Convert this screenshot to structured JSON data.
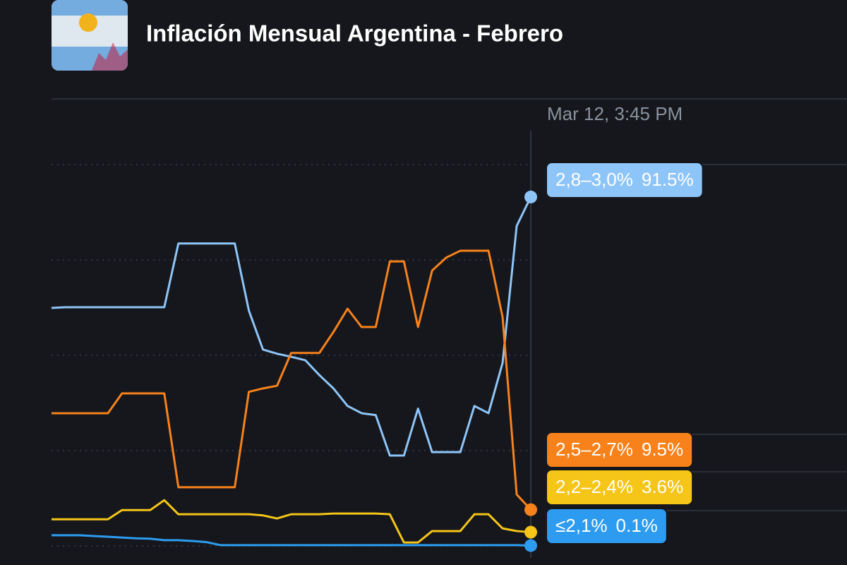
{
  "title": "Inflación Mensual Argentina - Febrero",
  "chart_data": {
    "type": "line",
    "annotation": "Mar 12, 3:45 PM",
    "ylim": [
      0,
      100
    ],
    "yticks": [
      0,
      25,
      50,
      75,
      100
    ],
    "grid": true,
    "series": [
      {
        "name": "2,8–3,0%",
        "color": "#8ec5f8",
        "values": [
          62.4,
          62.6,
          62.6,
          62.6,
          62.6,
          62.6,
          62.6,
          62.6,
          62.6,
          79.3,
          79.3,
          79.3,
          79.3,
          79.3,
          61.7,
          51.5,
          50.4,
          49.6,
          48.7,
          44.8,
          41.3,
          36.7,
          34.8,
          34.3,
          23.7,
          23.7,
          36.0,
          24.6,
          24.6,
          24.6,
          36.7,
          34.8,
          48.0,
          83.9,
          91.5
        ],
        "value_labels": [
          null,
          null,
          null,
          null,
          null,
          null,
          null,
          null,
          null,
          null,
          null,
          null,
          null,
          null,
          null,
          null,
          null,
          null,
          null,
          null,
          null,
          null,
          null,
          null,
          null,
          null,
          null,
          null,
          null,
          null,
          null,
          null,
          null,
          null,
          "91.5%"
        ]
      },
      {
        "name": "2,5–2,7%",
        "color": "#f7821b",
        "values": [
          34.8,
          34.8,
          34.8,
          34.8,
          34.8,
          40.0,
          40.0,
          40.0,
          40.0,
          15.4,
          15.4,
          15.4,
          15.4,
          15.4,
          40.4,
          41.3,
          42.0,
          50.6,
          50.6,
          50.6,
          56.1,
          62.2,
          57.4,
          57.4,
          74.6,
          74.6,
          57.4,
          72.2,
          75.6,
          77.4,
          77.4,
          77.4,
          60.0,
          13.5,
          9.5
        ],
        "value_labels": [
          null,
          null,
          null,
          null,
          null,
          null,
          null,
          null,
          null,
          null,
          null,
          null,
          null,
          null,
          null,
          null,
          null,
          null,
          null,
          null,
          null,
          null,
          null,
          null,
          null,
          null,
          null,
          null,
          null,
          null,
          null,
          null,
          null,
          null,
          "9.5%"
        ]
      },
      {
        "name": "2,2–2,4%",
        "color": "#f5c518",
        "values": [
          7.0,
          7.0,
          7.0,
          7.0,
          7.0,
          9.4,
          9.4,
          9.4,
          12.0,
          8.3,
          8.3,
          8.3,
          8.3,
          8.3,
          8.3,
          8.0,
          7.2,
          8.3,
          8.3,
          8.3,
          8.5,
          8.5,
          8.5,
          8.5,
          8.3,
          0.9,
          0.9,
          3.9,
          3.9,
          3.9,
          8.3,
          8.3,
          4.6,
          3.9,
          3.6
        ],
        "value_labels": [
          null,
          null,
          null,
          null,
          null,
          null,
          null,
          null,
          null,
          null,
          null,
          null,
          null,
          null,
          null,
          null,
          null,
          null,
          null,
          null,
          null,
          null,
          null,
          null,
          null,
          null,
          null,
          null,
          null,
          null,
          null,
          null,
          null,
          null,
          "3.6%"
        ]
      },
      {
        "name": "≤2,1%",
        "color": "#2d9cf0",
        "values": [
          2.8,
          2.8,
          2.8,
          2.6,
          2.4,
          2.2,
          2.0,
          1.9,
          1.5,
          1.5,
          1.3,
          1.0,
          0.2,
          0.2,
          0.2,
          0.2,
          0.2,
          0.2,
          0.2,
          0.2,
          0.2,
          0.2,
          0.2,
          0.2,
          0.2,
          0.2,
          0.2,
          0.2,
          0.2,
          0.2,
          0.2,
          0.2,
          0.2,
          0.2,
          0.1
        ],
        "value_labels": [
          null,
          null,
          null,
          null,
          null,
          null,
          null,
          null,
          null,
          null,
          null,
          null,
          null,
          null,
          null,
          null,
          null,
          null,
          null,
          null,
          null,
          null,
          null,
          null,
          null,
          null,
          null,
          null,
          null,
          null,
          null,
          null,
          null,
          null,
          "0.1%"
        ]
      }
    ]
  }
}
